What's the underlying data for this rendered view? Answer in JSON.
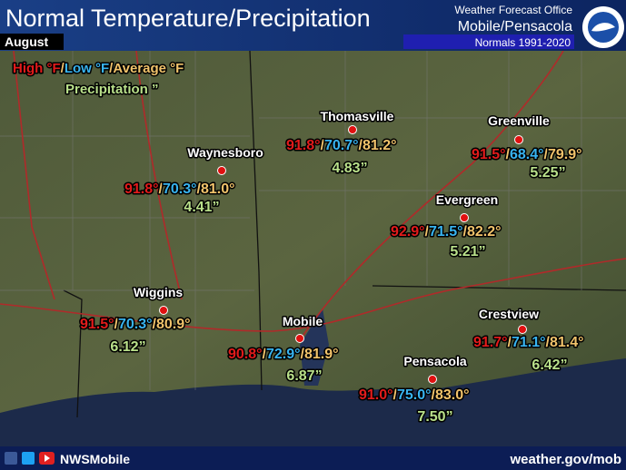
{
  "header": {
    "title": "Normal Temperature/Precipitation",
    "month": "August",
    "office": "Weather Forecast Office",
    "location": "Mobile/Pensacola",
    "normals": "Normals 1991-2020"
  },
  "legend": {
    "high": "High °F",
    "low": "Low °F",
    "average": "Average °F",
    "separator": "/",
    "precipitation": "Precipitation ”"
  },
  "stations": [
    {
      "name": "Thomasville",
      "high": "91.8°",
      "low": "70.7°",
      "average": "81.2°",
      "precipitation": "4.83”"
    },
    {
      "name": "Greenville",
      "high": "91.5°",
      "low": "68.4°",
      "average": "79.9°",
      "precipitation": "5.25”"
    },
    {
      "name": "Waynesboro",
      "high": "91.8°",
      "low": "70.3°",
      "average": "81.0°",
      "precipitation": "4.41”"
    },
    {
      "name": "Evergreen",
      "high": "92.9°",
      "low": "71.5°",
      "average": "82.2°",
      "precipitation": "5.21”"
    },
    {
      "name": "Wiggins",
      "high": "91.5°",
      "low": "70.3°",
      "average": "80.9°",
      "precipitation": "6.12”"
    },
    {
      "name": "Mobile",
      "high": "90.8°",
      "low": "72.9°",
      "average": "81.9°",
      "precipitation": "6.87”"
    },
    {
      "name": "Pensacola",
      "high": "91.0°",
      "low": "75.0°",
      "average": "83.0°",
      "precipitation": "7.50”"
    },
    {
      "name": "Crestview",
      "high": "91.7°",
      "low": "71.1°",
      "average": "81.4°",
      "precipitation": "6.42”"
    }
  ],
  "footer": {
    "handle": "NWSMobile",
    "website": "weather.gov/mob"
  }
}
